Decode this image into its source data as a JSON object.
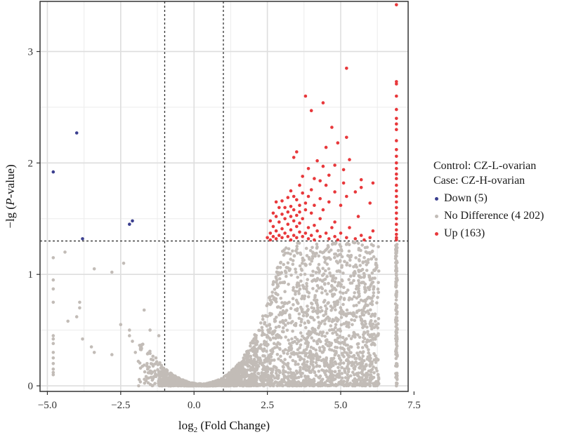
{
  "chart_data": {
    "type": "scatter",
    "title": "",
    "xlabel_main": "log",
    "xlabel_sub": "2",
    "xlabel_rest": " (Fold Change)",
    "ylabel_pre": "−lg (",
    "ylabel_italic": "P",
    "ylabel_post": "-value)",
    "xlim": [
      -5.25,
      7.3
    ],
    "ylim": [
      -0.05,
      3.45
    ],
    "x_ticks": [
      -5.0,
      -2.5,
      0.0,
      2.5,
      5.0,
      7.5
    ],
    "x_tick_labels": [
      "−5.0",
      "−2.5",
      "0.0",
      "2.5",
      "5.0",
      "7.5"
    ],
    "y_ticks": [
      0,
      1,
      2,
      3
    ],
    "y_tick_labels": [
      "0",
      "1",
      "2",
      "3"
    ],
    "threshold_lines": {
      "vertical": [
        -1,
        1
      ],
      "horizontal": 1.3
    },
    "grid": true,
    "legend_position": "right",
    "legend_header": [
      "Control: CZ-L-ovarian",
      "Case: CZ-H-ovarian"
    ],
    "series": [
      {
        "name": "Down (5)",
        "color": "#3b3f8f",
        "points": [
          [
            -4.0,
            2.27
          ],
          [
            -4.8,
            1.92
          ],
          [
            -2.1,
            1.48
          ],
          [
            -2.2,
            1.45
          ],
          [
            -3.8,
            1.32
          ]
        ]
      },
      {
        "name": "No Difference (4 202)",
        "color": "#c2bcb7",
        "points": [
          [
            -4.8,
            1.15
          ],
          [
            -4.8,
            0.95
          ],
          [
            -4.8,
            0.87
          ],
          [
            -4.8,
            0.75
          ],
          [
            -4.8,
            0.45
          ],
          [
            -4.8,
            0.42
          ],
          [
            -4.8,
            0.38
          ],
          [
            -4.8,
            0.3
          ],
          [
            -4.8,
            0.25
          ],
          [
            -4.8,
            0.2
          ],
          [
            -4.8,
            0.15
          ],
          [
            -4.8,
            0.12
          ],
          [
            -4.8,
            0.1
          ],
          [
            -4.4,
            1.2
          ],
          [
            -3.9,
            0.75
          ],
          [
            -3.9,
            0.7
          ],
          [
            -3.4,
            1.05
          ],
          [
            -2.8,
            1.02
          ],
          [
            -2.4,
            1.1
          ],
          [
            -2.2,
            0.5
          ],
          [
            -2.2,
            0.45
          ],
          [
            -3.8,
            0.42
          ],
          [
            -3.5,
            0.35
          ],
          [
            -1.7,
            0.68
          ],
          [
            -1.8,
            0.35
          ],
          [
            -1.5,
            0.5
          ],
          [
            -1.2,
            0.45
          ],
          [
            -3.4,
            0.3
          ],
          [
            -2.0,
            0.3
          ],
          [
            -1.6,
            0.2
          ],
          [
            -4.0,
            0.62
          ],
          [
            -2.5,
            0.55
          ],
          [
            -2.8,
            0.28
          ],
          [
            -1.3,
            0.25
          ],
          [
            -4.3,
            0.58
          ],
          [
            -2.1,
            0.4
          ],
          [
            -1.9,
            0.22
          ],
          [
            6.9,
            1.32
          ],
          [
            6.9,
            1.2
          ],
          [
            6.9,
            1.1
          ],
          [
            6.9,
            1.0
          ],
          [
            6.9,
            0.9
          ],
          [
            6.9,
            0.8
          ],
          [
            6.9,
            0.7
          ],
          [
            6.9,
            0.6
          ],
          [
            6.9,
            0.5
          ],
          [
            6.9,
            0.4
          ],
          [
            6.9,
            0.3
          ],
          [
            6.9,
            0.2
          ],
          [
            6.9,
            0.1
          ],
          [
            6.9,
            0.0
          ],
          [
            6.1,
            0.93
          ],
          [
            6.2,
            1.1
          ],
          [
            6.3,
            1.03
          ]
        ],
        "shape": {
          "note_generated": false,
          "mode": "volcano",
          "clusters": [
            {
              "x_from": -1.9,
              "x_to": 6.3,
              "count": 3000
            },
            {
              "x_from": 6.88,
              "x_to": 6.94,
              "count": 120
            }
          ]
        }
      },
      {
        "name": "Up (163)",
        "color": "#e8383b",
        "points": [
          [
            6.9,
            3.42
          ],
          [
            5.2,
            2.85
          ],
          [
            6.9,
            2.73
          ],
          [
            6.9,
            2.71
          ],
          [
            3.8,
            2.6
          ],
          [
            6.9,
            2.6
          ],
          [
            4.4,
            2.54
          ],
          [
            6.9,
            2.48
          ],
          [
            4.0,
            2.47
          ],
          [
            6.9,
            2.4
          ],
          [
            6.9,
            2.35
          ],
          [
            4.7,
            2.32
          ],
          [
            6.9,
            2.3
          ],
          [
            5.2,
            2.23
          ],
          [
            6.9,
            2.2
          ],
          [
            4.9,
            2.18
          ],
          [
            6.9,
            2.12
          ],
          [
            4.5,
            2.14
          ],
          [
            3.5,
            2.1
          ],
          [
            6.9,
            2.06
          ],
          [
            3.4,
            2.05
          ],
          [
            6.9,
            2.0
          ],
          [
            5.3,
            2.03
          ],
          [
            4.2,
            2.02
          ],
          [
            6.9,
            1.95
          ],
          [
            4.4,
            1.97
          ],
          [
            4.8,
            1.98
          ],
          [
            3.9,
            1.95
          ],
          [
            5.1,
            1.94
          ],
          [
            6.9,
            1.9
          ],
          [
            3.7,
            1.88
          ],
          [
            4.6,
            1.89
          ],
          [
            5.7,
            1.85
          ],
          [
            6.9,
            1.86
          ],
          [
            4.1,
            1.86
          ],
          [
            4.3,
            1.84
          ],
          [
            5.1,
            1.82
          ],
          [
            3.6,
            1.8
          ],
          [
            4.5,
            1.8
          ],
          [
            5.7,
            1.78
          ],
          [
            6.1,
            1.82
          ],
          [
            6.9,
            1.8
          ],
          [
            4.0,
            1.76
          ],
          [
            3.3,
            1.75
          ],
          [
            4.8,
            1.74
          ],
          [
            5.5,
            1.74
          ],
          [
            6.9,
            1.75
          ],
          [
            3.7,
            1.73
          ],
          [
            3.9,
            1.7
          ],
          [
            3.4,
            1.7
          ],
          [
            3.2,
            1.69
          ],
          [
            4.3,
            1.68
          ],
          [
            6.9,
            1.7
          ],
          [
            5.2,
            1.7
          ],
          [
            3.5,
            1.67
          ],
          [
            3.0,
            1.66
          ],
          [
            2.8,
            1.65
          ],
          [
            3.8,
            1.64
          ],
          [
            4.6,
            1.65
          ],
          [
            6.0,
            1.64
          ],
          [
            6.9,
            1.65
          ],
          [
            3.6,
            1.62
          ],
          [
            3.3,
            1.61
          ],
          [
            4.1,
            1.62
          ],
          [
            2.9,
            1.6
          ],
          [
            3.1,
            1.6
          ],
          [
            5.0,
            1.62
          ],
          [
            6.9,
            1.6
          ],
          [
            3.4,
            1.58
          ],
          [
            3.8,
            1.58
          ],
          [
            3.2,
            1.56
          ],
          [
            4.4,
            1.58
          ],
          [
            2.7,
            1.55
          ],
          [
            3.6,
            1.56
          ],
          [
            6.9,
            1.55
          ],
          [
            3.0,
            1.54
          ],
          [
            3.5,
            1.53
          ],
          [
            4.0,
            1.55
          ],
          [
            2.8,
            1.52
          ],
          [
            3.3,
            1.52
          ],
          [
            4.3,
            1.5
          ],
          [
            5.6,
            1.52
          ],
          [
            6.9,
            1.5
          ],
          [
            3.1,
            1.5
          ],
          [
            3.7,
            1.5
          ],
          [
            2.6,
            1.48
          ],
          [
            3.4,
            1.48
          ],
          [
            2.9,
            1.47
          ],
          [
            4.8,
            1.47
          ],
          [
            3.6,
            1.46
          ],
          [
            6.9,
            1.45
          ],
          [
            3.2,
            1.45
          ],
          [
            4.1,
            1.44
          ],
          [
            2.7,
            1.43
          ],
          [
            3.5,
            1.43
          ],
          [
            3.9,
            1.42
          ],
          [
            4.7,
            1.42
          ],
          [
            5.3,
            1.42
          ],
          [
            6.9,
            1.4
          ],
          [
            3.0,
            1.41
          ],
          [
            3.3,
            1.4
          ],
          [
            2.8,
            1.39
          ],
          [
            3.6,
            1.38
          ],
          [
            4.2,
            1.39
          ],
          [
            6.1,
            1.39
          ],
          [
            2.6,
            1.37
          ],
          [
            3.1,
            1.37
          ],
          [
            3.8,
            1.37
          ],
          [
            4.5,
            1.37
          ],
          [
            5.0,
            1.37
          ],
          [
            6.9,
            1.36
          ],
          [
            2.9,
            1.35
          ],
          [
            3.4,
            1.35
          ],
          [
            4.0,
            1.35
          ],
          [
            5.7,
            1.35
          ],
          [
            2.7,
            1.34
          ],
          [
            3.2,
            1.34
          ],
          [
            3.7,
            1.34
          ],
          [
            4.3,
            1.34
          ],
          [
            4.8,
            1.34
          ],
          [
            6.9,
            1.33
          ],
          [
            2.5,
            1.33
          ],
          [
            3.0,
            1.33
          ],
          [
            3.5,
            1.33
          ],
          [
            4.6,
            1.32
          ],
          [
            5.2,
            1.33
          ],
          [
            6.0,
            1.33
          ],
          [
            2.8,
            1.32
          ],
          [
            3.9,
            1.32
          ],
          [
            5.5,
            1.32
          ],
          [
            2.6,
            1.31
          ],
          [
            3.3,
            1.31
          ],
          [
            4.1,
            1.31
          ],
          [
            4.9,
            1.31
          ],
          [
            5.8,
            1.31
          ],
          [
            6.9,
            1.31
          ]
        ]
      }
    ]
  }
}
